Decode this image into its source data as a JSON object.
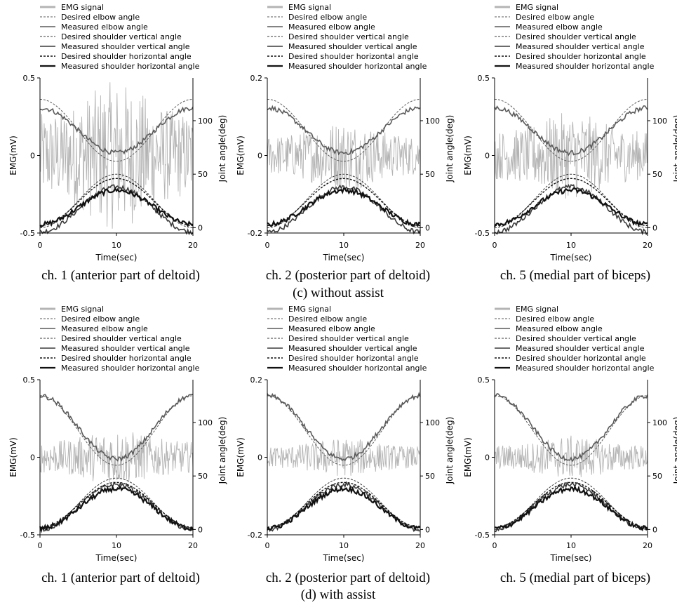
{
  "legend_labels": [
    "EMG signal",
    "Desired elbow angle",
    "Measured elbow angle",
    "Desired shoulder vertical angle",
    "Measured shoulder vertical angle",
    "Desired shoulder horizontal angle",
    "Measured shoulder horizontal angle"
  ],
  "colors": {
    "emg": "#b4b4b4",
    "elbow": "#5a5a5a",
    "shoulder_vertical": "#3a3a3a",
    "shoulder_horizontal": "#111111",
    "axis": "#000000"
  },
  "row_captions": [
    "(c)    without assist",
    "(d)    with assist"
  ],
  "chart_data": [
    {
      "type": "line",
      "row": "c",
      "caption": "ch. 1 (anterior part of deltoid)",
      "xlabel": "Time(sec)",
      "ylabel": "EMG(mV)",
      "y2label": "Joint angle(deg)",
      "xlim": [
        0,
        20
      ],
      "ylim": [
        -0.5,
        0.5
      ],
      "y2lim": [
        -5,
        140
      ],
      "xticks": [
        "0",
        "10",
        "20"
      ],
      "yticks": [
        "0.5",
        "0",
        "-0.5"
      ],
      "y2ticks": [
        "100",
        "50",
        "0"
      ],
      "emg_amplitude_mV": 0.48,
      "series": [
        {
          "name": "Desired elbow angle",
          "start_deg": 120,
          "min_deg": 62
        },
        {
          "name": "Measured elbow angle",
          "start_deg": 112,
          "min_deg": 70
        },
        {
          "name": "Desired shoulder vertical angle",
          "start_deg": 0,
          "peak_deg": 50
        },
        {
          "name": "Measured shoulder vertical angle",
          "start_deg": -4,
          "peak_deg": 38
        },
        {
          "name": "Desired shoulder horizontal angle",
          "start_deg": 2,
          "peak_deg": 46
        },
        {
          "name": "Measured shoulder horizontal angle",
          "start_deg": 3,
          "peak_deg": 35
        }
      ]
    },
    {
      "type": "line",
      "row": "c",
      "caption": "ch. 2 (posterior part of deltoid)",
      "xlabel": "Time(sec)",
      "ylabel": "EMG(mV)",
      "y2label": "Joint angle(deg)",
      "xlim": [
        0,
        20
      ],
      "ylim": [
        -0.2,
        0.2
      ],
      "y2lim": [
        -5,
        140
      ],
      "xticks": [
        "0",
        "10",
        "20"
      ],
      "yticks": [
        "0.2",
        "0",
        "-0.2"
      ],
      "y2ticks": [
        "100",
        "50",
        "0"
      ],
      "emg_amplitude_mV": 0.09,
      "series": [
        {
          "name": "Desired elbow angle",
          "start_deg": 120,
          "min_deg": 62
        },
        {
          "name": "Measured elbow angle",
          "start_deg": 112,
          "min_deg": 70
        },
        {
          "name": "Desired shoulder vertical angle",
          "start_deg": 0,
          "peak_deg": 50
        },
        {
          "name": "Measured shoulder vertical angle",
          "start_deg": -4,
          "peak_deg": 38
        },
        {
          "name": "Desired shoulder horizontal angle",
          "start_deg": 2,
          "peak_deg": 46
        },
        {
          "name": "Measured shoulder horizontal angle",
          "start_deg": 3,
          "peak_deg": 35
        }
      ]
    },
    {
      "type": "line",
      "row": "c",
      "caption": "ch. 5 (medial part of biceps)",
      "xlabel": "Time(sec)",
      "ylabel": "EMG(mV)",
      "y2label": "Joint angle(deg)",
      "xlim": [
        0,
        20
      ],
      "ylim": [
        -0.5,
        0.5
      ],
      "y2lim": [
        -5,
        140
      ],
      "xticks": [
        "0",
        "10",
        "20"
      ],
      "yticks": [
        "0.5",
        "0",
        "-0.5"
      ],
      "y2ticks": [
        "100",
        "50",
        "0"
      ],
      "emg_amplitude_mV": 0.28,
      "series": [
        {
          "name": "Desired elbow angle",
          "start_deg": 120,
          "min_deg": 62
        },
        {
          "name": "Measured elbow angle",
          "start_deg": 112,
          "min_deg": 70
        },
        {
          "name": "Desired shoulder vertical angle",
          "start_deg": 0,
          "peak_deg": 50
        },
        {
          "name": "Measured shoulder vertical angle",
          "start_deg": -4,
          "peak_deg": 38
        },
        {
          "name": "Desired shoulder horizontal angle",
          "start_deg": 2,
          "peak_deg": 46
        },
        {
          "name": "Measured shoulder horizontal angle",
          "start_deg": 3,
          "peak_deg": 35
        }
      ]
    },
    {
      "type": "line",
      "row": "d",
      "caption": "ch. 1 (anterior part of deltoid)",
      "xlabel": "Time(sec)",
      "ylabel": "EMG(mV)",
      "y2label": "Joint angle(deg)",
      "xlim": [
        0,
        20
      ],
      "ylim": [
        -0.5,
        0.5
      ],
      "y2lim": [
        -5,
        140
      ],
      "xticks": [
        "0",
        "10",
        "20"
      ],
      "yticks": [
        "0.5",
        "0",
        "-0.5"
      ],
      "y2ticks": [
        "100",
        "50",
        "0"
      ],
      "emg_amplitude_mV": 0.18,
      "series": [
        {
          "name": "Desired elbow angle",
          "start_deg": 125,
          "min_deg": 60
        },
        {
          "name": "Measured elbow angle",
          "start_deg": 125,
          "min_deg": 66
        },
        {
          "name": "Desired shoulder vertical angle",
          "start_deg": 0,
          "peak_deg": 48
        },
        {
          "name": "Measured shoulder vertical angle",
          "start_deg": 0,
          "peak_deg": 42
        },
        {
          "name": "Desired shoulder horizontal angle",
          "start_deg": 2,
          "peak_deg": 44
        },
        {
          "name": "Measured shoulder horizontal angle",
          "start_deg": 1,
          "peak_deg": 38
        }
      ]
    },
    {
      "type": "line",
      "row": "d",
      "caption": "ch. 2 (posterior part of deltoid)",
      "xlabel": "Time(sec)",
      "ylabel": "EMG(mV)",
      "y2label": "Joint angle(deg)",
      "xlim": [
        0,
        20
      ],
      "ylim": [
        -0.2,
        0.2
      ],
      "y2lim": [
        -5,
        140
      ],
      "xticks": [
        "0",
        "10",
        "20"
      ],
      "yticks": [
        "0.2",
        "0",
        "-0.2"
      ],
      "y2ticks": [
        "100",
        "50",
        "0"
      ],
      "emg_amplitude_mV": 0.05,
      "series": [
        {
          "name": "Desired elbow angle",
          "start_deg": 125,
          "min_deg": 60
        },
        {
          "name": "Measured elbow angle",
          "start_deg": 125,
          "min_deg": 66
        },
        {
          "name": "Desired shoulder vertical angle",
          "start_deg": 0,
          "peak_deg": 48
        },
        {
          "name": "Measured shoulder vertical angle",
          "start_deg": 0,
          "peak_deg": 42
        },
        {
          "name": "Desired shoulder horizontal angle",
          "start_deg": 2,
          "peak_deg": 44
        },
        {
          "name": "Measured shoulder horizontal angle",
          "start_deg": 1,
          "peak_deg": 38
        }
      ]
    },
    {
      "type": "line",
      "row": "d",
      "caption": "ch. 5 (medial part of biceps)",
      "xlabel": "Time(sec)",
      "ylabel": "EMG(mV)",
      "y2label": "Joint angle(deg)",
      "xlim": [
        0,
        20
      ],
      "ylim": [
        -0.5,
        0.5
      ],
      "y2lim": [
        -5,
        140
      ],
      "xticks": [
        "0",
        "10",
        "20"
      ],
      "yticks": [
        "0.5",
        "0",
        "-0.5"
      ],
      "y2ticks": [
        "100",
        "50",
        "0"
      ],
      "emg_amplitude_mV": 0.14,
      "series": [
        {
          "name": "Desired elbow angle",
          "start_deg": 125,
          "min_deg": 60
        },
        {
          "name": "Measured elbow angle",
          "start_deg": 125,
          "min_deg": 66
        },
        {
          "name": "Desired shoulder vertical angle",
          "start_deg": 0,
          "peak_deg": 48
        },
        {
          "name": "Measured shoulder vertical angle",
          "start_deg": 0,
          "peak_deg": 42
        },
        {
          "name": "Desired shoulder horizontal angle",
          "start_deg": 2,
          "peak_deg": 44
        },
        {
          "name": "Measured shoulder horizontal angle",
          "start_deg": 1,
          "peak_deg": 38
        }
      ]
    }
  ]
}
